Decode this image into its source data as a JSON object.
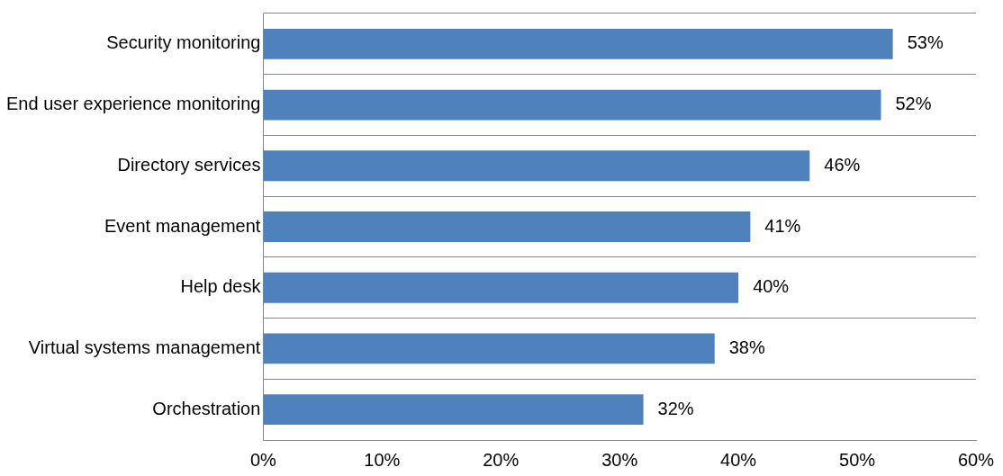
{
  "chart_data": {
    "type": "bar",
    "orientation": "horizontal",
    "categories": [
      "Security monitoring",
      "End user experience monitoring",
      "Directory services",
      "Event management",
      "Help desk",
      "Virtual systems management",
      "Orchestration"
    ],
    "values": [
      53,
      52,
      46,
      41,
      40,
      38,
      32
    ],
    "value_labels": [
      "53%",
      "52%",
      "46%",
      "41%",
      "40%",
      "38%",
      "32%"
    ],
    "color": "#4f81bd",
    "xlim": [
      0,
      60
    ],
    "xticks": [
      {
        "value": 0,
        "label": "0%"
      },
      {
        "value": 10,
        "label": "10%"
      },
      {
        "value": 20,
        "label": "20%"
      },
      {
        "value": 30,
        "label": "30%"
      },
      {
        "value": 40,
        "label": "40%"
      },
      {
        "value": 50,
        "label": "50%"
      },
      {
        "value": 60,
        "label": "60%"
      }
    ],
    "grid": "y",
    "legend": false
  }
}
